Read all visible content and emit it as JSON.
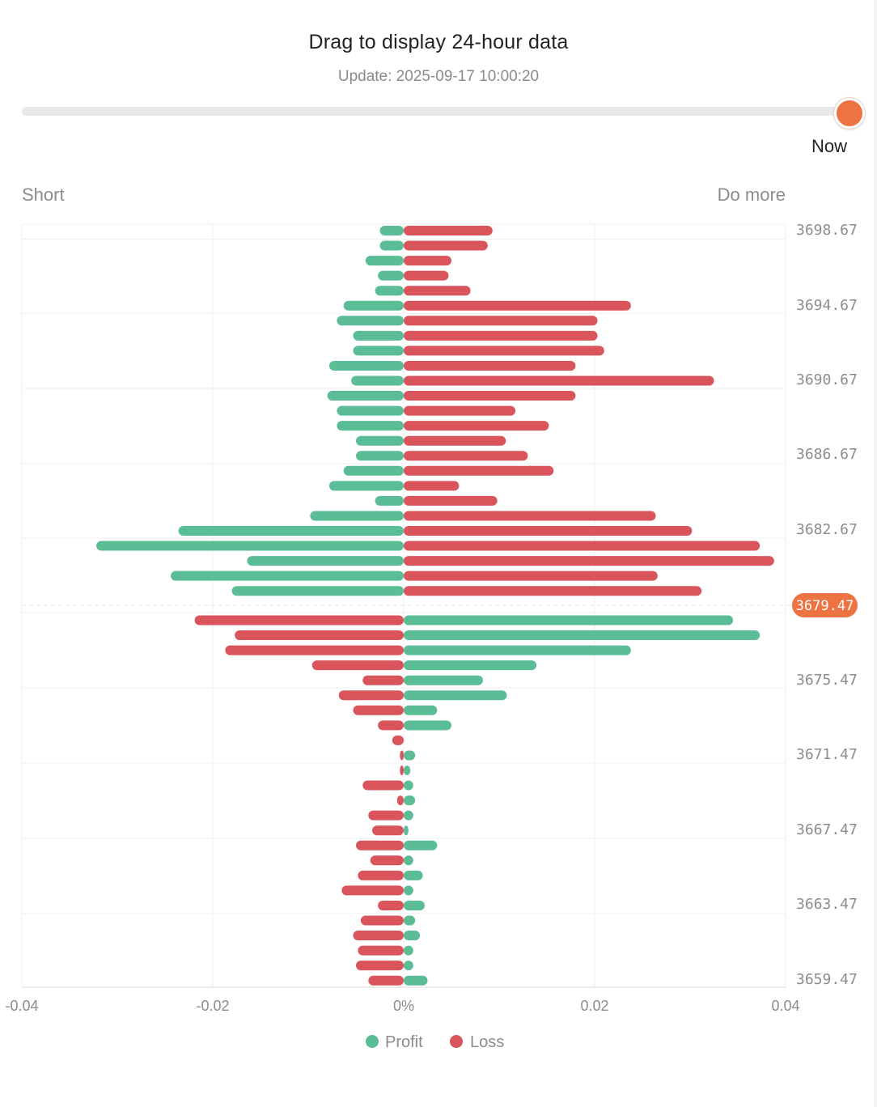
{
  "header": {
    "title": "Drag to display 24-hour data",
    "update": "Update: 2025-09-17 10:00:20"
  },
  "slider": {
    "position_label": "Now",
    "value_fraction": 1.0
  },
  "labels": {
    "left": "Short",
    "right": "Do more"
  },
  "colors": {
    "profit": "#5bbd96",
    "loss": "#d9545b",
    "accent": "#ee7343",
    "thumb": "#ee7343"
  },
  "chart_data": {
    "type": "bar",
    "orientation": "horizontal",
    "xlim": [
      -0.04,
      0.04
    ],
    "xticks": [
      {
        "v": -0.04,
        "label": "-0.04"
      },
      {
        "v": -0.02,
        "label": "-0.02"
      },
      {
        "v": 0,
        "label": "0%"
      },
      {
        "v": 0.02,
        "label": "0.02"
      },
      {
        "v": 0.04,
        "label": "0.04"
      }
    ],
    "yticks": [
      "3698.67",
      "3694.67",
      "3690.67",
      "3686.67",
      "3682.67",
      "3675.47",
      "3671.47",
      "3667.47",
      "3663.47",
      "3659.47"
    ],
    "current_price": "3679.47",
    "legend": [
      {
        "name": "Profit",
        "color": "#5bbd96"
      },
      {
        "name": "Loss",
        "color": "#d9545b"
      }
    ],
    "above_rows": [
      {
        "left": -0.0025,
        "right": 0.0093
      },
      {
        "left": -0.0025,
        "right": 0.0088
      },
      {
        "left": -0.004,
        "right": 0.005
      },
      {
        "left": -0.0027,
        "right": 0.0047
      },
      {
        "left": -0.003,
        "right": 0.007
      },
      {
        "left": -0.0063,
        "right": 0.0238
      },
      {
        "left": -0.007,
        "right": 0.0203
      },
      {
        "left": -0.0053,
        "right": 0.0203
      },
      {
        "left": -0.0053,
        "right": 0.021
      },
      {
        "left": -0.0078,
        "right": 0.018
      },
      {
        "left": -0.0055,
        "right": 0.0325
      },
      {
        "left": -0.008,
        "right": 0.018
      },
      {
        "left": -0.007,
        "right": 0.0117
      },
      {
        "left": -0.007,
        "right": 0.0152
      },
      {
        "left": -0.005,
        "right": 0.0107
      },
      {
        "left": -0.005,
        "right": 0.013
      },
      {
        "left": -0.0063,
        "right": 0.0157
      },
      {
        "left": -0.0078,
        "right": 0.0058
      },
      {
        "left": -0.003,
        "right": 0.0098
      },
      {
        "left": -0.0098,
        "right": 0.0264
      },
      {
        "left": -0.0236,
        "right": 0.0302
      },
      {
        "left": -0.0322,
        "right": 0.0373
      },
      {
        "left": -0.0164,
        "right": 0.0388
      },
      {
        "left": -0.0244,
        "right": 0.0266
      },
      {
        "left": -0.018,
        "right": 0.0312
      }
    ],
    "below_rows": [
      {
        "left": -0.0219,
        "right": 0.0345
      },
      {
        "left": -0.0177,
        "right": 0.0373
      },
      {
        "left": -0.0187,
        "right": 0.0238
      },
      {
        "left": -0.0096,
        "right": 0.0139
      },
      {
        "left": -0.0043,
        "right": 0.0083
      },
      {
        "left": -0.0068,
        "right": 0.0108
      },
      {
        "left": -0.0053,
        "right": 0.0035
      },
      {
        "left": -0.0027,
        "right": 0.005
      },
      {
        "left": -0.0012,
        "right": 0.0
      },
      {
        "left": -0.0004,
        "right": 0.0012
      },
      {
        "left": -0.0004,
        "right": 0.0007
      },
      {
        "left": -0.0043,
        "right": 0.001
      },
      {
        "left": -0.0007,
        "right": 0.0012
      },
      {
        "left": -0.0037,
        "right": 0.001
      },
      {
        "left": -0.0033,
        "right": 0.0005
      },
      {
        "left": -0.005,
        "right": 0.0035
      },
      {
        "left": -0.0035,
        "right": 0.001
      },
      {
        "left": -0.0048,
        "right": 0.002
      },
      {
        "left": -0.0065,
        "right": 0.001
      },
      {
        "left": -0.0027,
        "right": 0.0022
      },
      {
        "left": -0.0045,
        "right": 0.0012
      },
      {
        "left": -0.0053,
        "right": 0.0017
      },
      {
        "left": -0.0048,
        "right": 0.001
      },
      {
        "left": -0.005,
        "right": 0.001
      },
      {
        "left": -0.0037,
        "right": 0.0025
      }
    ]
  }
}
